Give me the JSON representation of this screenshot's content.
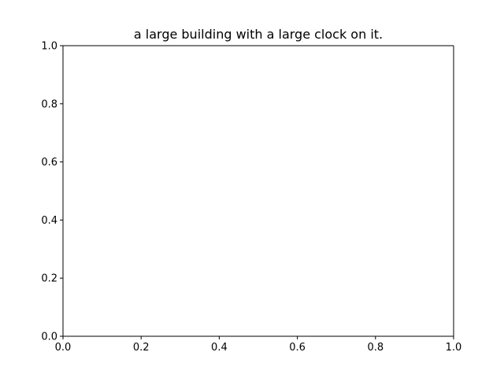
{
  "chart_data": {
    "type": "line",
    "title": "a large building with a large clock on it.",
    "xlabel": "",
    "ylabel": "",
    "xlim": [
      0.0,
      1.0
    ],
    "ylim": [
      0.0,
      1.0
    ],
    "x_ticks": [
      "0.0",
      "0.2",
      "0.4",
      "0.6",
      "0.8",
      "1.0"
    ],
    "y_ticks": [
      "0.0",
      "0.2",
      "0.4",
      "0.6",
      "0.8",
      "1.0"
    ],
    "series": [],
    "grid": false,
    "legend": "none"
  }
}
